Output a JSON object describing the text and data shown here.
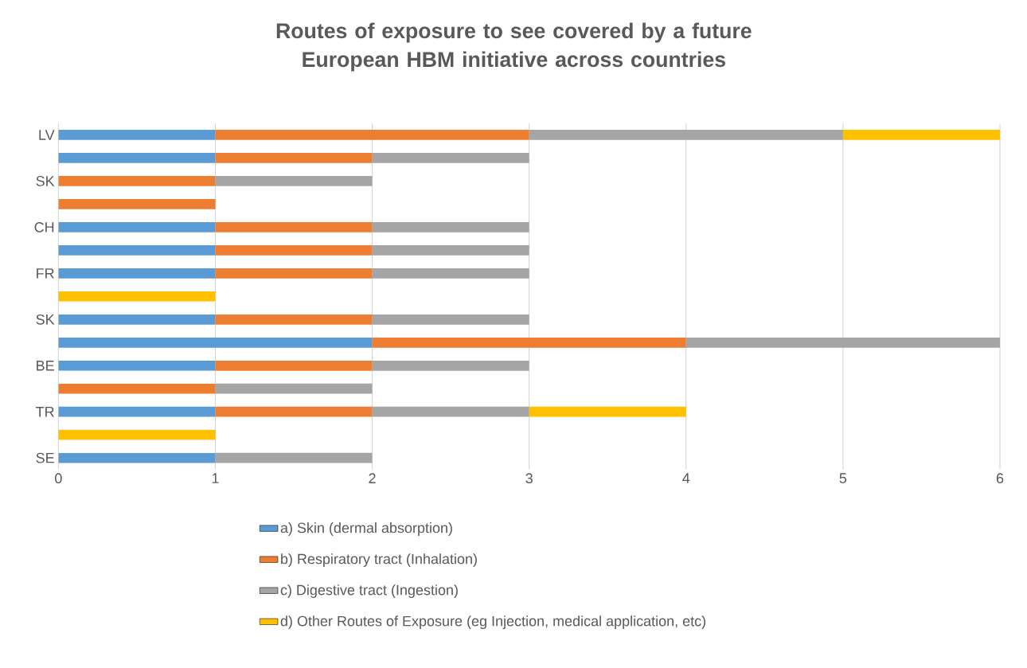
{
  "chart_data": {
    "type": "bar",
    "orientation": "horizontal",
    "stacked": true,
    "title": "Routes of exposure to see covered by a future European HBM initiative across countries",
    "categories": [
      "LV",
      null,
      "SK",
      null,
      "CH",
      null,
      "FR",
      null,
      "SK",
      null,
      "BE",
      null,
      "TR",
      null,
      "SE"
    ],
    "series": [
      {
        "name": "a) Skin (dermal absorption)",
        "color": "#5b9bd5",
        "values": [
          1,
          1,
          null,
          null,
          1,
          1,
          1,
          null,
          1,
          2,
          1,
          null,
          1,
          null,
          1
        ]
      },
      {
        "name": "b) Respiratory tract (Inhalation)",
        "color": "#ed7d31",
        "values": [
          2,
          1,
          1,
          1,
          1,
          1,
          1,
          null,
          1,
          2,
          1,
          1,
          1,
          null,
          null
        ]
      },
      {
        "name": "c) Digestive tract (Ingestion)",
        "color": "#a5a5a5",
        "values": [
          2,
          1,
          1,
          null,
          1,
          1,
          1,
          null,
          1,
          2,
          1,
          1,
          1,
          null,
          1
        ]
      },
      {
        "name": "d) Other Routes of Exposure (eg Injection, medical application, etc)",
        "color": "#ffc000",
        "values": [
          1,
          null,
          null,
          null,
          null,
          null,
          null,
          1,
          null,
          null,
          null,
          null,
          1,
          1,
          null
        ]
      }
    ],
    "xlim": [
      0,
      6
    ],
    "xticks": [
      0,
      1,
      2,
      3,
      4,
      5,
      6
    ],
    "grid": "x",
    "legend": "bottom"
  }
}
